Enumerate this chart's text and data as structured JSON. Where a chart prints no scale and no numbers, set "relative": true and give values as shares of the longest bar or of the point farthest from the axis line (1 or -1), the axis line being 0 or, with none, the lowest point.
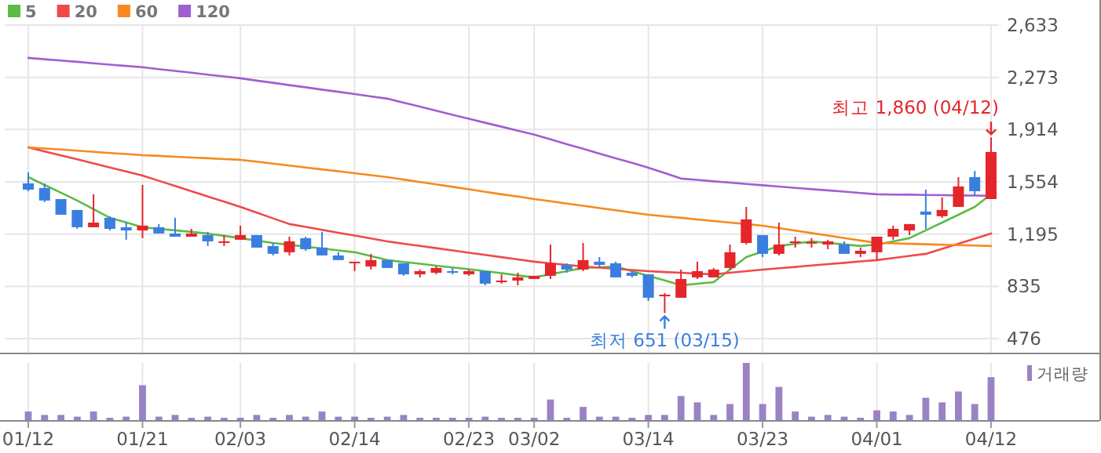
{
  "chart_data": [
    {
      "type": "candlestick",
      "categories": [
        "01/12",
        null,
        null,
        null,
        null,
        null,
        null,
        "01/21",
        null,
        null,
        null,
        null,
        null,
        "02/03",
        null,
        null,
        null,
        null,
        null,
        null,
        "02/14",
        null,
        null,
        null,
        null,
        null,
        null,
        "02/23",
        null,
        null,
        null,
        "03/02",
        null,
        null,
        null,
        null,
        null,
        null,
        "03/14",
        null,
        null,
        null,
        null,
        null,
        null,
        "03/23",
        null,
        null,
        null,
        null,
        null,
        null,
        "04/01",
        null,
        null,
        null,
        null,
        null,
        null,
        "04/12"
      ],
      "ohlc": [
        [
          1544,
          1620,
          1490,
          1501
        ],
        [
          1512,
          1544,
          1415,
          1426
        ],
        [
          1436,
          1436,
          1328,
          1328
        ],
        [
          1361,
          1361,
          1231,
          1242
        ],
        [
          1242,
          1469,
          1242,
          1274
        ],
        [
          1307,
          1318,
          1220,
          1231
        ],
        [
          1242,
          1274,
          1156,
          1220
        ],
        [
          1220,
          1533,
          1167,
          1253
        ],
        [
          1242,
          1264,
          1199,
          1199
        ],
        [
          1199,
          1307,
          1177,
          1177
        ],
        [
          1177,
          1231,
          1177,
          1199
        ],
        [
          1188,
          1210,
          1113,
          1145
        ],
        [
          1134,
          1188,
          1113,
          1145
        ],
        [
          1156,
          1253,
          1156,
          1188
        ],
        [
          1188,
          1188,
          1102,
          1102
        ],
        [
          1113,
          1134,
          1048,
          1059
        ],
        [
          1070,
          1177,
          1048,
          1145
        ],
        [
          1167,
          1177,
          1080,
          1091
        ],
        [
          1102,
          1210,
          1048,
          1048
        ],
        [
          1048,
          1070,
          1016,
          1016
        ],
        [
          1000,
          1005,
          940,
          1005
        ],
        [
          972,
          1059,
          951,
          1016
        ],
        [
          1016,
          1016,
          962,
          962
        ],
        [
          994,
          994,
          908,
          918
        ],
        [
          918,
          951,
          897,
          940
        ],
        [
          929,
          972,
          918,
          962
        ],
        [
          940,
          962,
          918,
          929
        ],
        [
          918,
          951,
          908,
          940
        ],
        [
          940,
          940,
          843,
          854
        ],
        [
          864,
          918,
          854,
          875
        ],
        [
          875,
          929,
          843,
          897
        ],
        [
          886,
          908,
          886,
          908
        ],
        [
          908,
          1123,
          886,
          994
        ],
        [
          983,
          994,
          929,
          951
        ],
        [
          951,
          1134,
          940,
          1016
        ],
        [
          1005,
          1037,
          972,
          983
        ],
        [
          994,
          1005,
          897,
          897
        ],
        [
          929,
          940,
          897,
          908
        ],
        [
          918,
          918,
          735,
          757
        ],
        [
          767,
          789,
          651,
          778
        ],
        [
          757,
          951,
          757,
          886
        ],
        [
          897,
          1005,
          886,
          940
        ],
        [
          897,
          962,
          897,
          951
        ],
        [
          962,
          1123,
          951,
          1070
        ],
        [
          1134,
          1382,
          1123,
          1296
        ],
        [
          1188,
          1188,
          1037,
          1059
        ],
        [
          1059,
          1274,
          1048,
          1123
        ],
        [
          1134,
          1177,
          1102,
          1145
        ],
        [
          1134,
          1167,
          1102,
          1140
        ],
        [
          1123,
          1156,
          1091,
          1145
        ],
        [
          1123,
          1145,
          1059,
          1059
        ],
        [
          1059,
          1102,
          1037,
          1080
        ],
        [
          1070,
          1177,
          1016,
          1177
        ],
        [
          1177,
          1253,
          1156,
          1231
        ],
        [
          1220,
          1264,
          1188,
          1264
        ],
        [
          1350,
          1501,
          1231,
          1328
        ],
        [
          1318,
          1447,
          1307,
          1361
        ],
        [
          1382,
          1587,
          1382,
          1523
        ],
        [
          1587,
          1630,
          1458,
          1490
        ],
        [
          1436,
          1860,
          1436,
          1760
        ]
      ],
      "colors": [
        "#3a7fe0",
        "#3a7fe0",
        "#3a7fe0",
        "#3a7fe0",
        "#e4262b",
        "#3a7fe0",
        "#3a7fe0",
        "#e4262b",
        "#3a7fe0",
        "#3a7fe0",
        "#e4262b",
        "#3a7fe0",
        "#e4262b",
        "#e4262b",
        "#3a7fe0",
        "#3a7fe0",
        "#e4262b",
        "#3a7fe0",
        "#3a7fe0",
        "#3a7fe0",
        "#e4262b",
        "#e4262b",
        "#3a7fe0",
        "#3a7fe0",
        "#e4262b",
        "#e4262b",
        "#3a7fe0",
        "#e4262b",
        "#3a7fe0",
        "#e4262b",
        "#e4262b",
        "#e4262b",
        "#e4262b",
        "#3a7fe0",
        "#e4262b",
        "#3a7fe0",
        "#3a7fe0",
        "#3a7fe0",
        "#3a7fe0",
        "#e4262b",
        "#e4262b",
        "#e4262b",
        "#e4262b",
        "#e4262b",
        "#e4262b",
        "#3a7fe0",
        "#e4262b",
        "#e4262b",
        "#e4262b",
        "#e4262b",
        "#3a7fe0",
        "#e4262b",
        "#e4262b",
        "#e4262b",
        "#e4262b",
        "#3a7fe0",
        "#e4262b",
        "#e4262b",
        "#3a7fe0",
        "#e4262b"
      ],
      "series": [
        {
          "name": "5",
          "type": "line",
          "color": "#5dbb46",
          "values": [
            1587,
            1533,
            1480,
            1426,
            1367,
            1307,
            1275,
            1242,
            1231,
            1221,
            1210,
            1199,
            1183,
            1167,
            1150,
            1134,
            1121,
            1108,
            1096,
            1083,
            1070,
            1043,
            1016,
            1003,
            991,
            978,
            965,
            953,
            940,
            926,
            911,
            897,
            919,
            940,
            962,
            967,
            972,
            940,
            908,
            876,
            843,
            854,
            864,
            951,
            1037,
            1075,
            1113,
            1129,
            1145,
            1134,
            1124,
            1113,
            1123,
            1145,
            1167,
            1221,
            1274,
            1328,
            1382,
            1469
          ]
        },
        {
          "name": "20",
          "type": "line",
          "color": "#f0494a",
          "values": [
            1792,
            1764,
            1737,
            1709,
            1681,
            1653,
            1626,
            1598,
            1562,
            1526,
            1490,
            1454,
            1418,
            1382,
            1343,
            1303,
            1264,
            1244,
            1224,
            1204,
            1185,
            1165,
            1145,
            1129,
            1114,
            1098,
            1083,
            1067,
            1052,
            1036,
            1021,
            1005,
            994,
            983,
            972,
            964,
            956,
            948,
            940,
            934,
            929,
            923,
            918,
            929,
            940,
            951,
            960,
            969,
            979,
            988,
            997,
            1007,
            1016,
            1030,
            1045,
            1059,
            1094,
            1129,
            1164,
            1199
          ]
        },
        {
          "name": "60",
          "type": "line",
          "color": "#f7891f",
          "values": [
            1792,
            1784,
            1777,
            1769,
            1761,
            1753,
            1746,
            1738,
            1733,
            1727,
            1722,
            1717,
            1711,
            1706,
            1693,
            1680,
            1666,
            1653,
            1640,
            1627,
            1614,
            1600,
            1587,
            1570,
            1553,
            1537,
            1520,
            1503,
            1486,
            1469,
            1453,
            1436,
            1421,
            1405,
            1390,
            1374,
            1359,
            1343,
            1328,
            1317,
            1307,
            1296,
            1285,
            1274,
            1264,
            1253,
            1236,
            1219,
            1202,
            1185,
            1168,
            1151,
            1134,
            1131,
            1128,
            1125,
            1122,
            1119,
            1116,
            1113
          ]
        },
        {
          "name": "120",
          "type": "line",
          "color": "#a05fd0",
          "values": [
            2407,
            2398,
            2389,
            2380,
            2370,
            2361,
            2352,
            2343,
            2330,
            2318,
            2305,
            2292,
            2280,
            2267,
            2251,
            2236,
            2220,
            2205,
            2189,
            2174,
            2158,
            2142,
            2127,
            2099,
            2072,
            2044,
            2016,
            1989,
            1961,
            1934,
            1906,
            1879,
            1847,
            1814,
            1782,
            1749,
            1717,
            1685,
            1652,
            1615,
            1577,
            1568,
            1558,
            1549,
            1540,
            1531,
            1522,
            1513,
            1504,
            1496,
            1487,
            1478,
            1469,
            1467,
            1466,
            1464,
            1463,
            1461,
            1460,
            1458
          ]
        }
      ],
      "ylim": [
        379,
        2633
      ],
      "yticks": [
        {
          "value": 476,
          "label": "476"
        },
        {
          "value": 835,
          "label": "835"
        },
        {
          "value": 1195,
          "label": "1,195"
        },
        {
          "value": 1554,
          "label": "1,554"
        },
        {
          "value": 1914,
          "label": "1,914"
        },
        {
          "value": 2273,
          "label": "2,273"
        },
        {
          "value": 2633,
          "label": "2,633"
        }
      ],
      "grid": true,
      "legend": "top left",
      "tick_labels": "y",
      "annotations": [
        {
          "text": "최고 1,860 (04/12)",
          "x": "04/12",
          "y": 1860
        },
        {
          "text": "최저 651 (03/15)",
          "y": 651
        }
      ]
    },
    {
      "type": "bar",
      "relative": true,
      "categories": [
        "01/12",
        null,
        null,
        null,
        null,
        null,
        null,
        "01/21",
        null,
        null,
        null,
        null,
        null,
        "02/03",
        null,
        null,
        null,
        null,
        null,
        null,
        "02/14",
        null,
        null,
        null,
        null,
        null,
        null,
        "02/23",
        null,
        null,
        null,
        "03/02",
        null,
        null,
        null,
        null,
        null,
        null,
        "03/14",
        null,
        null,
        null,
        null,
        null,
        null,
        "03/23",
        null,
        null,
        null,
        null,
        null,
        null,
        "04/01",
        null,
        null,
        null,
        null,
        null,
        null,
        "04/12"
      ],
      "series": [
        {
          "name": "거래량",
          "color": "#9b82c4",
          "values": [
            0.15,
            0.09,
            0.09,
            0.06,
            0.15,
            0.04,
            0.06,
            0.61,
            0.06,
            0.09,
            0.04,
            0.06,
            0.04,
            0.04,
            0.09,
            0.04,
            0.09,
            0.06,
            0.15,
            0.06,
            0.06,
            0.04,
            0.06,
            0.09,
            0.04,
            0.04,
            0.04,
            0.04,
            0.06,
            0.04,
            0.04,
            0.04,
            0.36,
            0.04,
            0.23,
            0.06,
            0.06,
            0.04,
            0.09,
            0.09,
            0.42,
            0.31,
            0.09,
            0.28,
            1,
            0.28,
            0.58,
            0.15,
            0.06,
            0.09,
            0.06,
            0.04,
            0.17,
            0.15,
            0.09,
            0.39,
            0.31,
            0.5,
            0.28,
            0.75
          ]
        }
      ],
      "grid": "x",
      "legend": "top right",
      "tick_labels": "x"
    }
  ]
}
